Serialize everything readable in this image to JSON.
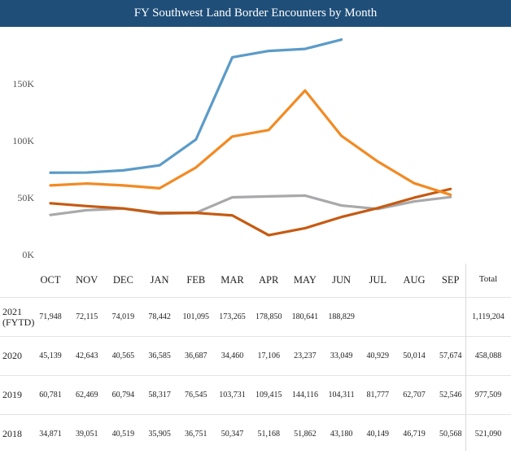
{
  "title": "FY Southwest Land Border Encounters by Month",
  "chart_data": {
    "type": "line",
    "title": "FY Southwest Land Border Encounters by Month",
    "categories": [
      "OCT",
      "NOV",
      "DEC",
      "JAN",
      "FEB",
      "MAR",
      "APR",
      "MAY",
      "JUN",
      "JUL",
      "AUG",
      "SEP"
    ],
    "ylim": [
      0,
      200000
    ],
    "yticks": [
      {
        "value": 0,
        "label": "0K"
      },
      {
        "value": 50000,
        "label": "50K"
      },
      {
        "value": 100000,
        "label": "100K"
      },
      {
        "value": 150000,
        "label": "150K"
      }
    ],
    "xlabel": "",
    "ylabel": "",
    "grid": false,
    "series": [
      {
        "name": "2021 (FYTD)",
        "color": "#5b9bc8",
        "values": [
          71948,
          72115,
          74019,
          78442,
          101095,
          173265,
          178850,
          180641,
          188829,
          null,
          null,
          null
        ],
        "total": "1,119,204"
      },
      {
        "name": "2020",
        "color": "#c65a11",
        "values": [
          45139,
          42643,
          40565,
          36585,
          36687,
          34460,
          17106,
          23237,
          33049,
          40929,
          50014,
          57674
        ],
        "total": "458,088"
      },
      {
        "name": "2019",
        "color": "#f28a23",
        "values": [
          60781,
          62469,
          60794,
          58317,
          76545,
          103731,
          109415,
          144116,
          104311,
          81777,
          62707,
          52546
        ],
        "total": "977,509"
      },
      {
        "name": "2018",
        "color": "#a9a9ab",
        "values": [
          34871,
          39051,
          40519,
          35905,
          36751,
          50347,
          51168,
          51862,
          43180,
          40149,
          46719,
          50568
        ],
        "total": "521,090"
      }
    ]
  },
  "table": {
    "months": [
      "OCT",
      "NOV",
      "DEC",
      "JAN",
      "FEB",
      "MAR",
      "APR",
      "MAY",
      "JUN",
      "JUL",
      "AUG",
      "SEP"
    ],
    "total_header": "Total",
    "rows": [
      {
        "year_line1": "2021",
        "year_line2": "(FYTD)",
        "cells": [
          "71,948",
          "72,115",
          "74,019",
          "78,442",
          "101,095",
          "173,265",
          "178,850",
          "180,641",
          "188,829",
          "",
          "",
          ""
        ],
        "total": "1,119,204"
      },
      {
        "year_line1": "2020",
        "year_line2": "",
        "cells": [
          "45,139",
          "42,643",
          "40,565",
          "36,585",
          "36,687",
          "34,460",
          "17,106",
          "23,237",
          "33,049",
          "40,929",
          "50,014",
          "57,674"
        ],
        "total": "458,088"
      },
      {
        "year_line1": "2019",
        "year_line2": "",
        "cells": [
          "60,781",
          "62,469",
          "60,794",
          "58,317",
          "76,545",
          "103,731",
          "109,415",
          "144,116",
          "104,311",
          "81,777",
          "62,707",
          "52,546"
        ],
        "total": "977,509"
      },
      {
        "year_line1": "2018",
        "year_line2": "",
        "cells": [
          "34,871",
          "39,051",
          "40,519",
          "35,905",
          "36,751",
          "50,347",
          "51,168",
          "51,862",
          "43,180",
          "40,149",
          "46,719",
          "50,568"
        ],
        "total": "521,090"
      }
    ]
  }
}
